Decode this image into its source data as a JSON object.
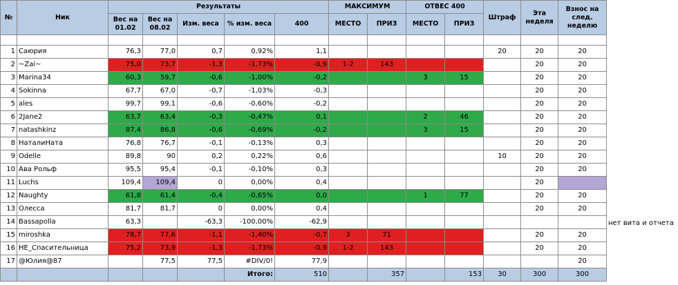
{
  "header": {
    "no": "№",
    "nick": "Ник",
    "results": "Результаты",
    "weight_0102": "Вес на 01.02",
    "weight_0802": "Вес на 08.02",
    "weight_change": "Изм. веса",
    "weight_change_pct": "% изм. веса",
    "col400": "400",
    "maximum": "МАКСИМУМ",
    "otves400": "ОТВЕС 400",
    "place": "МЕСТО",
    "prize": "ПРИЗ",
    "fine": "Штраф",
    "this_week": "Эта неделя",
    "next_week": "Взнос на след. неделю"
  },
  "colors": {
    "header_bg": "#b8cce4",
    "red": "#e02020",
    "green": "#2eaa4a",
    "lavender": "#b4a7d6"
  },
  "rows": [
    {
      "n": "1",
      "nick": "Саюрия",
      "w1": "76,3",
      "w2": "77,0",
      "d": "0,7",
      "p": "0,92%",
      "v400": "1,1",
      "mp": "",
      "mz": "",
      "op": "",
      "oz": "",
      "fine": "20",
      "week": "20",
      "next": "20",
      "hl": ""
    },
    {
      "n": "2",
      "nick": "~Zai~",
      "w1": "75,0",
      "w2": "73,7",
      "d": "-1,3",
      "p": "-1,73%",
      "v400": "-0,9",
      "mp": "1-2",
      "mz": "143",
      "op": "",
      "oz": "",
      "fine": "",
      "week": "20",
      "next": "20",
      "hl": "red"
    },
    {
      "n": "3",
      "nick": "Marina34",
      "w1": "60,3",
      "w2": "59,7",
      "d": "-0,6",
      "p": "-1,00%",
      "v400": "-0,2",
      "mp": "",
      "mz": "",
      "op": "3",
      "oz": "15",
      "fine": "",
      "week": "20",
      "next": "20",
      "hl": "green"
    },
    {
      "n": "4",
      "nick": "Sokinna",
      "w1": "67,7",
      "w2": "67,0",
      "d": "-0,7",
      "p": "-1,03%",
      "v400": "-0,3",
      "mp": "",
      "mz": "",
      "op": "",
      "oz": "",
      "fine": "",
      "week": "20",
      "next": "20",
      "hl": ""
    },
    {
      "n": "5",
      "nick": "ales",
      "w1": "99,7",
      "w2": "99,1",
      "d": "-0,6",
      "p": "-0,60%",
      "v400": "-0,2",
      "mp": "",
      "mz": "",
      "op": "",
      "oz": "",
      "fine": "",
      "week": "20",
      "next": "20",
      "hl": ""
    },
    {
      "n": "6",
      "nick": "2Jane2",
      "w1": "63,7",
      "w2": "63,4",
      "d": "-0,3",
      "p": "-0,47%",
      "v400": "0,1",
      "mp": "",
      "mz": "",
      "op": "2",
      "oz": "46",
      "fine": "",
      "week": "20",
      "next": "20",
      "hl": "green"
    },
    {
      "n": "7",
      "nick": "natashkinz",
      "w1": "87,4",
      "w2": "86,8",
      "d": "-0,6",
      "p": "-0,69%",
      "v400": "-0,2",
      "mp": "",
      "mz": "",
      "op": "3",
      "oz": "15",
      "fine": "",
      "week": "20",
      "next": "20",
      "hl": "green"
    },
    {
      "n": "8",
      "nick": "НаталиНата",
      "w1": "76,8",
      "w2": "76,7",
      "d": "-0,1",
      "p": "-0,13%",
      "v400": "0,3",
      "mp": "",
      "mz": "",
      "op": "",
      "oz": "",
      "fine": "",
      "week": "20",
      "next": "20",
      "hl": ""
    },
    {
      "n": "9",
      "nick": "Odelle",
      "w1": "89,8",
      "w2": "90",
      "d": "0,2",
      "p": "0,22%",
      "v400": "0,6",
      "mp": "",
      "mz": "",
      "op": "",
      "oz": "",
      "fine": "10",
      "week": "20",
      "next": "20",
      "hl": ""
    },
    {
      "n": "10",
      "nick": "Ава Рольф",
      "w1": "95,5",
      "w2": "95,4",
      "d": "-0,1",
      "p": "-0,10%",
      "v400": "0,3",
      "mp": "",
      "mz": "",
      "op": "",
      "oz": "",
      "fine": "",
      "week": "20",
      "next": "20",
      "hl": ""
    },
    {
      "n": "11",
      "nick": "Luchs",
      "w1": "109,4",
      "w2": "109,4",
      "d": "0",
      "p": "0,00%",
      "v400": "0,4",
      "mp": "",
      "mz": "",
      "op": "",
      "oz": "",
      "fine": "",
      "week": "20",
      "next": "",
      "hl": "lav"
    },
    {
      "n": "12",
      "nick": "Naughty",
      "w1": "61,8",
      "w2": "61,4",
      "d": "-0,4",
      "p": "-0,65%",
      "v400": "0,0",
      "mp": "",
      "mz": "",
      "op": "1",
      "oz": "77",
      "fine": "",
      "week": "20",
      "next": "20",
      "hl": "green"
    },
    {
      "n": "13",
      "nick": "Олесса",
      "w1": "81,7",
      "w2": "81,7",
      "d": "0",
      "p": "0,00%",
      "v400": "0,4",
      "mp": "",
      "mz": "",
      "op": "",
      "oz": "",
      "fine": "",
      "week": "20",
      "next": "20",
      "hl": ""
    },
    {
      "n": "14",
      "nick": "Bassapolla",
      "w1": "63,3",
      "w2": "",
      "d": "-63,3",
      "p": "-100,00%",
      "v400": "-62,9",
      "mp": "",
      "mz": "",
      "op": "",
      "oz": "",
      "fine": "",
      "week": "",
      "next": "",
      "hl": ""
    },
    {
      "n": "15",
      "nick": "miroshka",
      "w1": "78,7",
      "w2": "77,6",
      "d": "-1,1",
      "p": "-1,40%",
      "v400": "-0,7",
      "mp": "3",
      "mz": "71",
      "op": "",
      "oz": "",
      "fine": "",
      "week": "20",
      "next": "20",
      "hl": "red"
    },
    {
      "n": "16",
      "nick": "НЕ_Спасительница",
      "w1": "75,2",
      "w2": "73,9",
      "d": "-1,3",
      "p": "-1,73%",
      "v400": "-0,9",
      "mp": "1-2",
      "mz": "143",
      "op": "",
      "oz": "",
      "fine": "",
      "week": "20",
      "next": "20",
      "hl": "red"
    },
    {
      "n": "17",
      "nick": "@Юлия@87",
      "w1": "",
      "w2": "77,5",
      "d": "77,5",
      "p": "#DIV/0!",
      "v400": "77,9",
      "mp": "",
      "mz": "",
      "op": "",
      "oz": "",
      "fine": "",
      "week": "",
      "next": "20",
      "hl": ""
    }
  ],
  "totals": {
    "label": "Итого:",
    "v400": "510",
    "max_prize": "357",
    "otves_prize": "153",
    "fine": "30",
    "week": "300",
    "next": "300"
  },
  "note": "нет вита и отчета"
}
